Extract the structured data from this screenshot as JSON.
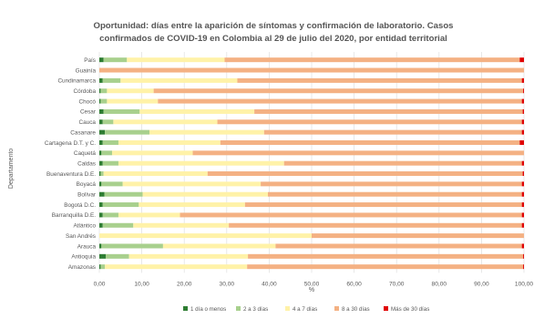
{
  "chart_data": {
    "type": "bar",
    "orientation": "horizontal",
    "stacked": "100%",
    "title": "Oportunidad: días entre la aparición de síntomas y confirmación de laboratorio. Casos confirmados de COVID-19 en Colombia al 29 de julio del 2020, por entidad territorial",
    "title_lines": [
      "Oportunidad: días entre la aparición de síntomas y confirmación de laboratorio. Casos",
      "confirmados de COVID-19 en Colombia al 29 de julio del 2020, por entidad territorial"
    ],
    "xlabel": "%",
    "ylabel": "Departamento",
    "xlim": [
      0,
      100
    ],
    "xticks": [
      "0,00",
      "10,00",
      "20,00",
      "30,00",
      "40,00",
      "50,00",
      "60,00",
      "70,00",
      "80,00",
      "90,00",
      "100,00"
    ],
    "grid": "vertical",
    "legend_position": "bottom",
    "categories": [
      "País",
      "Guainía",
      "Cundinamarca",
      "Córdoba",
      "Chocó",
      "Cesar",
      "Cauca",
      "Casanare",
      "Cartagena D.T. y C.",
      "Caquetá",
      "Caldas",
      "Buenaventura D.E.",
      "Boyacá",
      "Bolívar",
      "Bogotá D.C.",
      "Barranquilla D.E.",
      "Atlántico",
      "San Andrés",
      "Arauca",
      "Antioquia",
      "Amazonas"
    ],
    "series": [
      {
        "name": "1 día o menos",
        "color": "#2e7d32",
        "values": [
          1.0,
          0.0,
          0.8,
          0.3,
          0.3,
          1.0,
          0.8,
          1.3,
          0.8,
          0.5,
          0.8,
          0.3,
          0.5,
          1.2,
          0.8,
          0.8,
          0.8,
          0.0,
          0.5,
          1.5,
          0.3
        ]
      },
      {
        "name": "2 a 3 días",
        "color": "#a8d08d",
        "values": [
          5.5,
          0.0,
          4.2,
          1.5,
          1.5,
          8.5,
          2.5,
          10.5,
          3.7,
          2.5,
          3.7,
          0.7,
          5.0,
          9.0,
          8.5,
          3.7,
          7.2,
          0.0,
          14.5,
          5.5,
          1.0
        ]
      },
      {
        "name": "4 a 7 días",
        "color": "#fff2a8",
        "values": [
          23.0,
          0.0,
          27.5,
          11.0,
          12.0,
          27.0,
          24.5,
          27.0,
          24.0,
          19.0,
          39.0,
          24.5,
          32.5,
          29.5,
          25.0,
          14.5,
          22.5,
          50.0,
          26.5,
          28.0,
          33.5
        ]
      },
      {
        "name": "8 a 30 días",
        "color": "#f4b183",
        "values": [
          69.5,
          100.0,
          67.0,
          87.0,
          85.7,
          63.2,
          71.7,
          60.7,
          70.5,
          78.0,
          56.0,
          74.2,
          61.5,
          59.8,
          65.2,
          80.5,
          69.0,
          50.0,
          58.0,
          64.8,
          65.0
        ]
      },
      {
        "name": "Más de 30 días",
        "color": "#e00000",
        "values": [
          1.0,
          0.0,
          0.5,
          0.2,
          0.5,
          0.3,
          0.5,
          0.5,
          1.0,
          0.0,
          0.5,
          0.3,
          0.5,
          0.5,
          0.5,
          0.5,
          0.5,
          0.0,
          0.5,
          0.2,
          0.2
        ]
      }
    ]
  }
}
